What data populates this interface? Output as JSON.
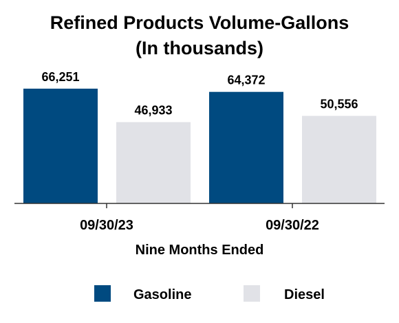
{
  "chart_data": {
    "type": "bar",
    "title_lines": [
      "Refined Products Volume-Gallons",
      "(In thousands)"
    ],
    "xlabel": "Nine Months Ended",
    "ylabel": "",
    "categories": [
      "09/30/23",
      "09/30/22"
    ],
    "series": [
      {
        "name": "Gasoline",
        "values": [
          66251,
          64372
        ],
        "labels": [
          "66,251",
          "64,372"
        ],
        "color": "#004a80"
      },
      {
        "name": "Diesel",
        "values": [
          46933,
          50556
        ],
        "labels": [
          "46,933",
          "50,556"
        ],
        "color": "#e1e2e7"
      }
    ],
    "ylim": [
      0,
      66251
    ],
    "grid": false,
    "legend_position": "bottom"
  }
}
